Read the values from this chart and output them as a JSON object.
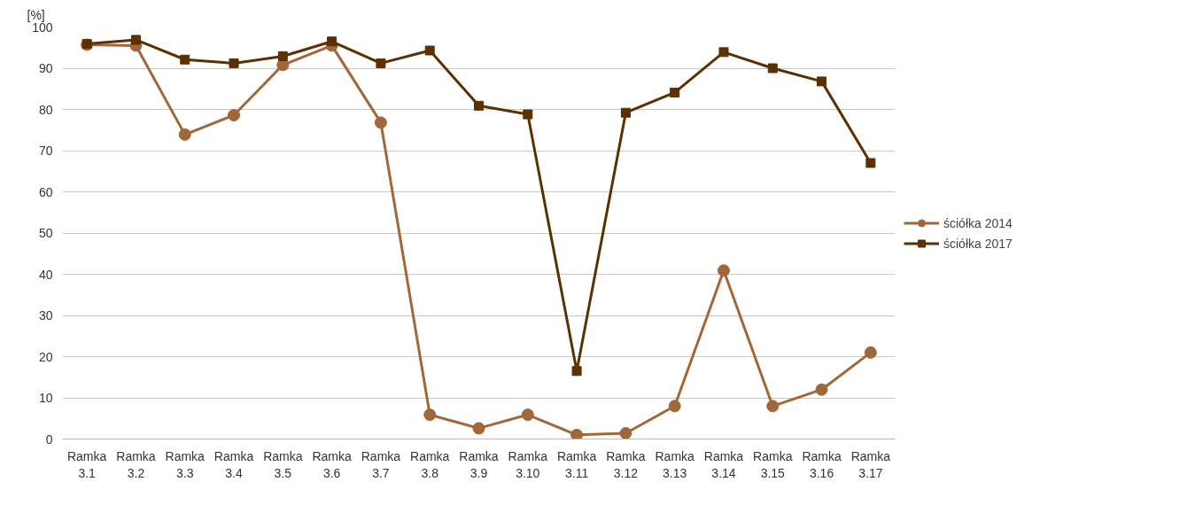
{
  "chart_data": {
    "type": "line",
    "ylabel": "[%]",
    "categories": [
      "Ramka 3.1",
      "Ramka 3.2",
      "Ramka 3.3",
      "Ramka 3.4",
      "Ramka 3.5",
      "Ramka 3.6",
      "Ramka 3.7",
      "Ramka 3.8",
      "Ramka 3.9",
      "Ramka 3.10",
      "Ramka 3.11",
      "Ramka 3.12",
      "Ramka 3.13",
      "Ramka 3.14",
      "Ramka 3.15",
      "Ramka 3.16",
      "Ramka 3.17"
    ],
    "series": [
      {
        "name": "ściółka 2014",
        "color": "#a0683a",
        "marker": "circle",
        "values": [
          95.7,
          95.5,
          73.9,
          78.6,
          90.8,
          95.5,
          76.8,
          5.9,
          2.6,
          5.9,
          1,
          1.4,
          8,
          40.9,
          8,
          12,
          21
        ]
      },
      {
        "name": "ściółka 2017",
        "color": "#5c3000",
        "marker": "square",
        "values": [
          95.9,
          96.9,
          92.1,
          91.2,
          92.9,
          96.5,
          91.2,
          94.3,
          80.9,
          78.8,
          16.5,
          79.2,
          84.1,
          93.9,
          90,
          86.8,
          67
        ]
      }
    ],
    "ylim": [
      0,
      100
    ],
    "yticks": [
      0,
      10,
      20,
      30,
      40,
      50,
      60,
      70,
      80,
      90,
      100
    ],
    "grid": "y",
    "legend": "right",
    "line_style": "solid"
  }
}
